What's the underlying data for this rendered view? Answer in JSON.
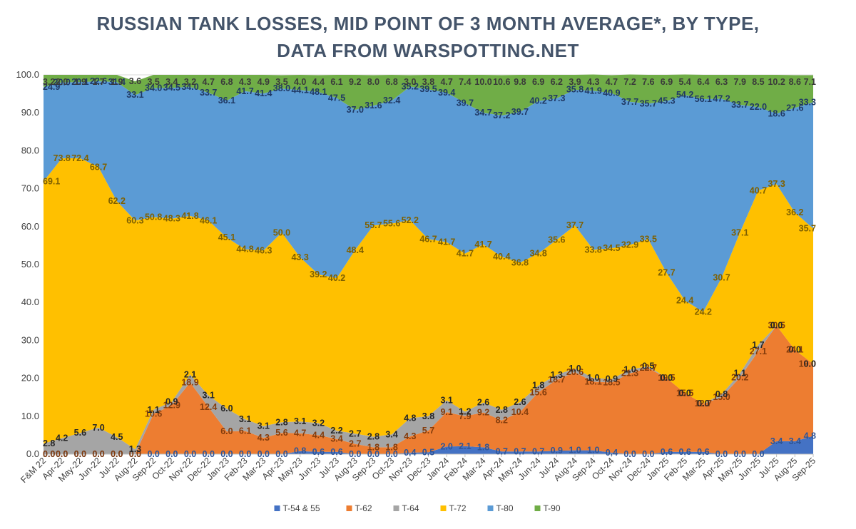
{
  "chart_data": {
    "type": "area",
    "stacked": true,
    "title_lines": [
      "RUSSIAN TANK LOSSES, MID POINT OF 3 MONTH AVERAGE*, BY TYPE,",
      "DATA FROM WARSPOTTING.NET"
    ],
    "xlabel": "",
    "ylabel": "",
    "ylim": [
      0,
      100
    ],
    "yticks": [
      "0.0",
      "10.0",
      "20.0",
      "30.0",
      "40.0",
      "50.0",
      "60.0",
      "70.0",
      "80.0",
      "90.0",
      "100.0"
    ],
    "grid": true,
    "legend_position": "bottom",
    "categories": [
      "F&M 22",
      "Apr-22",
      "May-22",
      "Jun-22",
      "Jul-22",
      "Aug-22",
      "Sep-22",
      "Oct-22",
      "Nov-22",
      "Dec-22",
      "Jan-23",
      "Feb-23",
      "Mar-23",
      "Apr-23",
      "May-23",
      "Jun-23",
      "Jul-23",
      "Aug-23",
      "Sep-23",
      "Oct-23",
      "Nov-23",
      "Dec-23",
      "Jan-24",
      "Feb-24",
      "Mar-24",
      "Apr-24",
      "May-24",
      "Jun-24",
      "Jul-24",
      "Aug-24",
      "Sep-24",
      "Oct-24",
      "Nov-24",
      "Dec-24",
      "Jan-25",
      "Feb-25",
      "Mar-25",
      "Apr-25",
      "May-25",
      "Jun-25",
      "Jul-25",
      "Aug-25",
      "Sep-25"
    ],
    "series": [
      {
        "name": "T-54 & 55",
        "color": "#4472c4",
        "label_color": "#2f5597",
        "values": [
          0.0,
          0.0,
          0.0,
          0.0,
          0.0,
          0.0,
          0.0,
          0.0,
          0.0,
          0.0,
          0.0,
          0.0,
          0.0,
          0.0,
          0.8,
          0.6,
          0.6,
          0.0,
          0.0,
          0.0,
          0.4,
          0.5,
          2.0,
          2.1,
          1.8,
          0.7,
          0.7,
          0.7,
          0.9,
          1.0,
          1.0,
          0.4,
          0.0,
          0.0,
          0.6,
          0.6,
          0.6,
          0.0,
          0.0,
          0.0,
          3.4,
          3.4,
          4.8
        ]
      },
      {
        "name": "T-62",
        "color": "#ed7d31",
        "label_color": "#843c0c",
        "values": [
          0.0,
          0.0,
          0.0,
          0.0,
          0.0,
          0.0,
          10.6,
          12.9,
          18.9,
          12.4,
          6.0,
          6.1,
          4.3,
          5.6,
          4.7,
          4.4,
          3.4,
          2.7,
          1.8,
          1.8,
          4.3,
          5.7,
          9.1,
          7.9,
          9.2,
          8.2,
          10.4,
          15.6,
          18.7,
          20.6,
          18.1,
          18.5,
          21.3,
          22.7,
          19.5,
          15.5,
          12.7,
          15.0,
          20.2,
          27.1,
          30.5,
          24.1,
          19.0
        ]
      },
      {
        "name": "T-64",
        "color": "#a5a5a5",
        "label_color": "#262626",
        "values": [
          2.8,
          4.2,
          5.6,
          7.0,
          4.5,
          1.3,
          1.1,
          0.9,
          2.1,
          3.1,
          6.0,
          3.1,
          3.1,
          2.8,
          3.1,
          3.2,
          2.2,
          2.7,
          2.8,
          3.4,
          4.8,
          3.8,
          3.1,
          1.2,
          2.6,
          2.8,
          2.6,
          1.8,
          1.3,
          1.0,
          1.0,
          0.9,
          1.0,
          0.5,
          0.0,
          0.0,
          0.0,
          0.8,
          1.1,
          1.7,
          0.0,
          0.0,
          0.0
        ]
      },
      {
        "name": "T-72",
        "color": "#ffc000",
        "label_color": "#7f6000",
        "values": [
          69.1,
          73.8,
          72.4,
          68.7,
          62.2,
          60.3,
          50.8,
          48.3,
          41.8,
          46.1,
          45.1,
          44.8,
          46.3,
          50.0,
          43.3,
          39.2,
          40.2,
          48.4,
          55.7,
          55.6,
          52.2,
          46.7,
          41.7,
          41.7,
          41.7,
          40.4,
          36.8,
          34.8,
          35.6,
          37.7,
          33.8,
          34.5,
          32.9,
          33.5,
          27.7,
          24.4,
          24.2,
          30.7,
          37.1,
          40.7,
          37.3,
          36.2,
          35.7
        ]
      },
      {
        "name": "T-80",
        "color": "#5b9bd5",
        "label_color": "#1f3864",
        "values": [
          24.9,
          20.0,
          20.1,
          22.6,
          31.4,
          33.1,
          34.0,
          34.5,
          34.0,
          33.7,
          36.1,
          41.7,
          41.4,
          38.0,
          44.1,
          48.1,
          47.5,
          37.0,
          31.6,
          32.4,
          35.2,
          39.5,
          39.4,
          39.7,
          34.7,
          37.2,
          39.7,
          40.2,
          37.3,
          35.8,
          41.9,
          40.9,
          37.7,
          35.7,
          45.3,
          54.2,
          56.1,
          47.2,
          33.7,
          22.0,
          18.6,
          27.6,
          33.3
        ]
      },
      {
        "name": "T-90",
        "color": "#70ad47",
        "label_color": "#3a3a3a",
        "values": [
          3.2,
          2.0,
          1.9,
          1.7,
          1.9,
          3.6,
          3.5,
          3.4,
          3.2,
          4.7,
          6.8,
          4.3,
          4.9,
          3.5,
          4.0,
          4.4,
          6.1,
          9.2,
          8.0,
          6.8,
          3.0,
          3.8,
          4.7,
          7.4,
          10.0,
          10.6,
          9.8,
          6.9,
          6.2,
          3.9,
          4.3,
          4.7,
          7.2,
          7.6,
          6.9,
          5.4,
          6.4,
          6.3,
          7.9,
          8.5,
          10.2,
          8.6,
          7.1
        ]
      }
    ]
  }
}
